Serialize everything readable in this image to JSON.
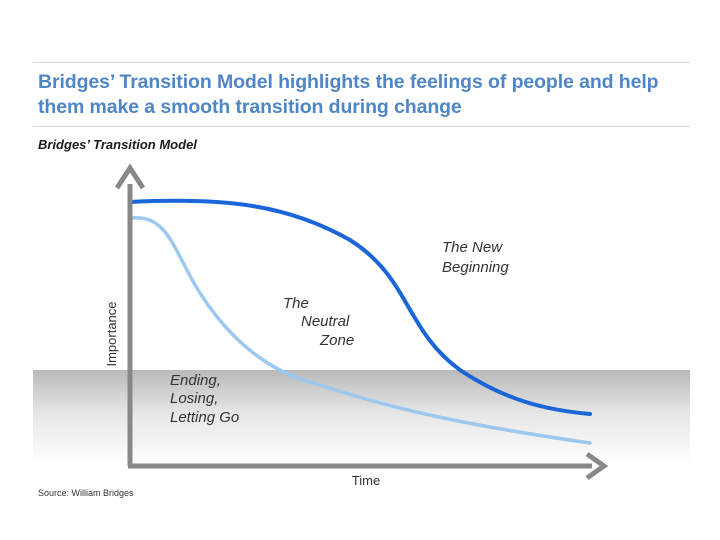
{
  "slide": {
    "title_line1": "Bridges’ Transition Model highlights the feelings of people and help",
    "title_line2": "them make a smooth transition during change",
    "subtitle": "Bridges’ Transition Model",
    "source": "Source: William Bridges"
  },
  "diagram": {
    "x_axis_label": "Time",
    "y_axis_label": "Importance",
    "label_new_beginning_1": "The New",
    "label_new_beginning_2": "Beginning",
    "label_neutral_1": "The",
    "label_neutral_2": "Neutral",
    "label_neutral_3": "Zone",
    "label_ending_1": "Ending,",
    "label_ending_2": "Losing,",
    "label_ending_3": "Letting Go",
    "colors": {
      "title": "#4f86c6",
      "curve_dark": "#1a66d9",
      "curve_light": "#9cc8ee",
      "axis": "#888888"
    }
  }
}
